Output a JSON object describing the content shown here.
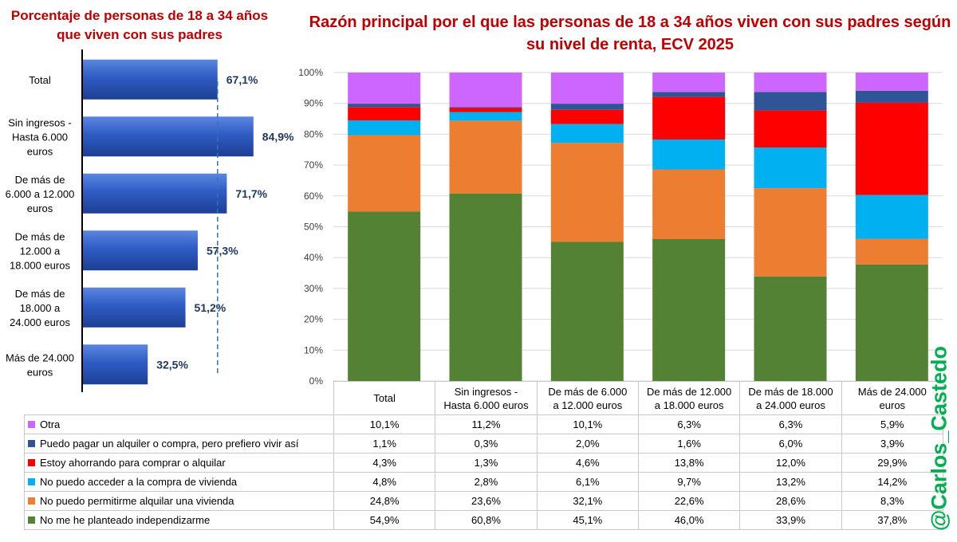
{
  "chart_data": [
    {
      "type": "bar",
      "orientation": "horizontal",
      "title": "Porcentaje de personas de 18 a 34 años que viven con sus padres",
      "categories": [
        "Total",
        "Sin ingresos - Hasta 6.000 euros",
        "De más de 6.000 a 12.000 euros",
        "De más de 12.000 a 18.000 euros",
        "De más de 18.000 a 24.000 euros",
        "Más de 24.000 euros"
      ],
      "category_lines": [
        [
          "Total"
        ],
        [
          "Sin ingresos -",
          "Hasta 6.000",
          "euros"
        ],
        [
          "De más de",
          "6.000 a 12.000",
          "euros"
        ],
        [
          "De más de",
          "12.000 a",
          "18.000 euros"
        ],
        [
          "De más de",
          "18.000 a",
          "24.000 euros"
        ],
        [
          "Más de 24.000",
          "euros"
        ]
      ],
      "values": [
        67.1,
        84.9,
        71.7,
        57.3,
        51.2,
        32.5
      ],
      "value_labels": [
        "67,1%",
        "84,9%",
        "71,7%",
        "57,3%",
        "51,2%",
        "32,5%"
      ],
      "reference_line": 67.1,
      "xlim": [
        0,
        100
      ],
      "bar_color": "#2f5cc4"
    },
    {
      "type": "bar",
      "stacked": true,
      "percent": true,
      "title": "Razón principal por el que las personas de 18 a 34 años viven con sus padres según su nivel de renta, ECV 2025",
      "categories": [
        "Total",
        "Sin ingresos - Hasta 6.000 euros",
        "De más de 6.000 a 12.000 euros",
        "De más de 12.000 a 18.000 euros",
        "De más de 18.000 a 24.000 euros",
        "Más de 24.000 euros"
      ],
      "category_lines": [
        [
          "Total"
        ],
        [
          "Sin ingresos -",
          "Hasta 6.000 euros"
        ],
        [
          "De más de 6.000",
          "a 12.000 euros"
        ],
        [
          "De más de 12.000",
          "a 18.000 euros"
        ],
        [
          "De más de 18.000",
          "a 24.000 euros"
        ],
        [
          "Más de 24.000",
          "euros"
        ]
      ],
      "ylim": [
        0,
        100
      ],
      "y_ticks": [
        "0%",
        "10%",
        "20%",
        "30%",
        "40%",
        "50%",
        "60%",
        "70%",
        "80%",
        "90%",
        "100%"
      ],
      "grid": true,
      "series": [
        {
          "name": "No me he planteado independizarme",
          "color": "#548235",
          "values": [
            54.9,
            60.8,
            45.1,
            46.0,
            33.9,
            37.8
          ],
          "labels": [
            "54,9%",
            "60,8%",
            "45,1%",
            "46,0%",
            "33,9%",
            "37,8%"
          ]
        },
        {
          "name": "No puedo permitirme alquilar una vivienda",
          "color": "#ed7d31",
          "values": [
            24.8,
            23.6,
            32.1,
            22.6,
            28.6,
            8.3
          ],
          "labels": [
            "24,8%",
            "23,6%",
            "32,1%",
            "22,6%",
            "28,6%",
            "8,3%"
          ]
        },
        {
          "name": "No puedo acceder a la compra de vivienda",
          "color": "#00b0f0",
          "values": [
            4.8,
            2.8,
            6.1,
            9.7,
            13.2,
            14.2
          ],
          "labels": [
            "4,8%",
            "2,8%",
            "6,1%",
            "9,7%",
            "13,2%",
            "14,2%"
          ]
        },
        {
          "name": "Estoy ahorrando para comprar o alquilar",
          "color": "#ff0000",
          "values": [
            4.3,
            1.3,
            4.6,
            13.8,
            12.0,
            29.9
          ],
          "labels": [
            "4,3%",
            "1,3%",
            "4,6%",
            "13,8%",
            "12,0%",
            "29,9%"
          ]
        },
        {
          "name": "Puedo pagar un alquiler o compra, pero prefiero vivir así",
          "color": "#2f5597",
          "values": [
            1.1,
            0.3,
            2.0,
            1.6,
            6.0,
            3.9
          ],
          "labels": [
            "1,1%",
            "0,3%",
            "2,0%",
            "1,6%",
            "6,0%",
            "3,9%"
          ]
        },
        {
          "name": "Otra",
          "color": "#cc66ff",
          "values": [
            10.1,
            11.2,
            10.1,
            6.3,
            6.3,
            5.9
          ],
          "labels": [
            "10,1%",
            "11,2%",
            "10,1%",
            "6,3%",
            "6,3%",
            "5,9%"
          ]
        }
      ]
    }
  ],
  "watermark": "@Carlos_Castedo"
}
